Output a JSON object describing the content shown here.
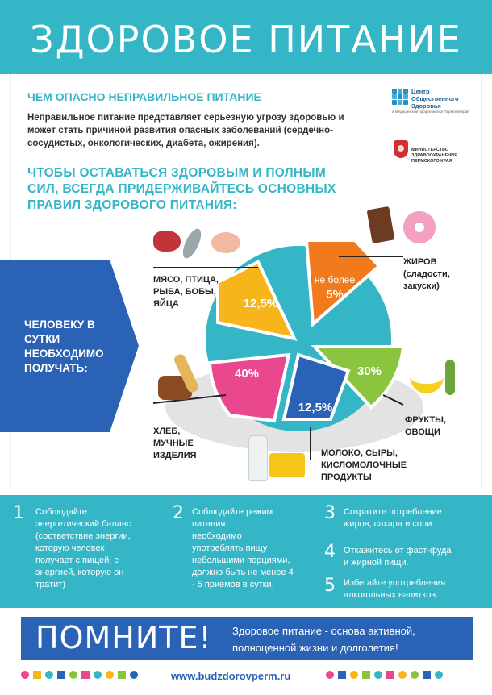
{
  "header": {
    "title": "ЗДОРОВОЕ ПИТАНИЕ"
  },
  "section1": {
    "heading": "ЧЕМ ОПАСНО НЕПРАВИЛЬНОЕ ПИТАНИЕ",
    "text": "Неправильное питание представляет серьезную угрозу здоровью и может стать причиной развития опасных заболеваний (сердечно-сосудистых, онкологических, диабета, ожирения)."
  },
  "logos": {
    "center_line1": "Центр",
    "center_line2": "Общественного",
    "center_line3": "Здоровья",
    "center_sub": "и Медицинской профилактики Пермский край",
    "ministry_line1": "МИНИСТЕРСТВО",
    "ministry_line2": "ЗДРАВООХРАНЕНИЯ",
    "ministry_line3": "ПЕРМСКОГО КРАЯ"
  },
  "section2": {
    "line1": "ЧТОБЫ ОСТАВАТЬСЯ ЗДОРОВЫМ И ПОЛНЫМ",
    "line2": "СИЛ, ВСЕГДА ПРИДЕРЖИВАЙТЕСЬ ОСНОВНЫХ",
    "line3": "ПРАВИЛ ЗДОРОВОГО ПИТАНИЯ:"
  },
  "side": {
    "line1": "ЧЕЛОВЕКУ В",
    "line2": "СУТКИ",
    "line3": "НЕОБХОДИМО",
    "line4": "ПОЛУЧАТЬ:"
  },
  "chart_data": {
    "type": "pie",
    "series": [
      {
        "value_label": "не более",
        "value": "5%",
        "label_lines": [
          "ЖИРОВ",
          "(сладости,",
          "закуски)"
        ],
        "color": "#f07a1c"
      },
      {
        "value": "30%",
        "label_lines": [
          "ФРУКТЫ,",
          "ОВОЩИ"
        ],
        "color": "#8bc540"
      },
      {
        "value": "12,5%",
        "label_lines": [
          "МОЛОКО, СЫРЫ,",
          "КИСЛОМОЛОЧНЫЕ",
          "ПРОДУКТЫ"
        ],
        "color": "#2a62b6"
      },
      {
        "value": "40%",
        "label_lines": [
          "ХЛЕБ,",
          "МУЧНЫЕ",
          "ИЗДЕЛИЯ"
        ],
        "color": "#e9488f"
      },
      {
        "value": "12,5%",
        "label_lines": [
          "МЯСО, ПТИЦА,",
          "РЫБА, БОБЫ,",
          "ЯЙЦА"
        ],
        "color": "#f6b51b"
      }
    ],
    "other_color": "#34b6c6"
  },
  "tips": {
    "t1": {
      "num": "1",
      "lines": [
        "Соблюдайте",
        "энергетический баланс",
        "(соответствие энергии,",
        "которую человек",
        "получает с пищей, с",
        "энергией, которую он",
        "тратит)"
      ]
    },
    "t2": {
      "num": "2",
      "lines": [
        "Соблюдайте режим",
        "питания:",
        "необходимо",
        "употреблять пищу",
        "небольшими порциями,",
        "должно быть не менее 4",
        "- 5 приемов в сутки."
      ]
    },
    "t3": {
      "num": "3",
      "lines": [
        "Сократите потребление",
        "жиров, сахара и соли"
      ]
    },
    "t4": {
      "num": "4",
      "lines": [
        "Откажитесь от фаст-фуда",
        "и жирной пищи."
      ]
    },
    "t5": {
      "num": "5",
      "lines": [
        "Избегайте употребления",
        "алкогольных напитков."
      ]
    }
  },
  "remember": {
    "title": "ПОМНИТЕ!",
    "line1": "Здоровое питание - основа активной,",
    "line2": "полноценной жизни и долголетия!"
  },
  "footer": {
    "site": "www.budzdorovperm.ru"
  },
  "colors": {
    "teal": "#34b6c6",
    "blue": "#2a62b6",
    "pink": "#e9488f",
    "green": "#8bc540",
    "orange": "#f07a1c",
    "yellow": "#f6b51b"
  }
}
